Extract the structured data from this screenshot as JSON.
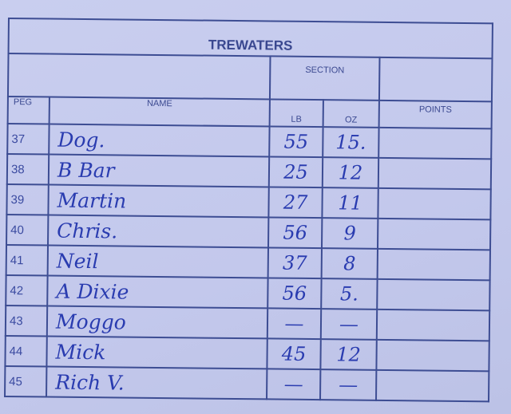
{
  "title": "TREWATERS",
  "section_label": "SECTION",
  "headers": {
    "peg": "PEG",
    "name": "NAME",
    "lb": "LB",
    "oz": "OZ",
    "points": "POINTS"
  },
  "rows": [
    {
      "peg": "37",
      "name": "Dog.",
      "lb": "55",
      "oz": "15.",
      "points": ""
    },
    {
      "peg": "38",
      "name": "B Bar",
      "lb": "25",
      "oz": "12",
      "points": ""
    },
    {
      "peg": "39",
      "name": "Martin",
      "lb": "27",
      "oz": "11",
      "points": ""
    },
    {
      "peg": "40",
      "name": "Chris.",
      "lb": "56",
      "oz": "9",
      "points": ""
    },
    {
      "peg": "41",
      "name": "Neil",
      "lb": "37",
      "oz": "8",
      "points": ""
    },
    {
      "peg": "42",
      "name": "A Dixie",
      "lb": "56",
      "oz": "5.",
      "points": ""
    },
    {
      "peg": "43",
      "name": "Moggo",
      "lb": "—",
      "oz": "—",
      "points": ""
    },
    {
      "peg": "44",
      "name": "Mick",
      "lb": "45",
      "oz": "12",
      "points": ""
    },
    {
      "peg": "45",
      "name": "Rich V.",
      "lb": "—",
      "oz": "—",
      "points": ""
    }
  ],
  "colors": {
    "paper": "#c6cbee",
    "ink": "#2a3cb0",
    "lines": "#3d4d93"
  }
}
